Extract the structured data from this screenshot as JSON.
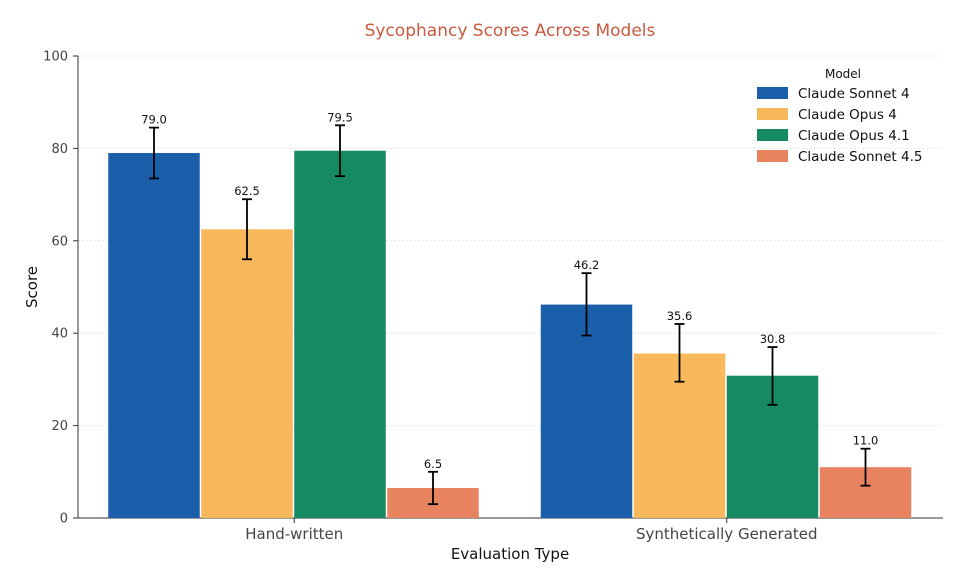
{
  "chart_data": {
    "type": "bar",
    "title": "Sycophancy Scores Across Models",
    "xlabel": "Evaluation Type",
    "ylabel": "Score",
    "ylim": [
      0,
      100
    ],
    "yticks": [
      0,
      20,
      40,
      60,
      80,
      100
    ],
    "grid": true,
    "legend_title": "Model",
    "legend_position": "top-right",
    "categories": [
      "Hand-written",
      "Synthetically Generated"
    ],
    "series": [
      {
        "name": "Claude Sonnet 4",
        "color": "#1b5faa",
        "values": [
          79.0,
          46.2
        ],
        "labels": [
          "79.0",
          "46.2"
        ],
        "err_low": [
          73.5,
          39.5
        ],
        "err_high": [
          84.5,
          53.0
        ]
      },
      {
        "name": "Claude Opus 4",
        "color": "#f8b95c",
        "values": [
          62.5,
          35.6
        ],
        "labels": [
          "62.5",
          "35.6"
        ],
        "err_low": [
          56.0,
          29.5
        ],
        "err_high": [
          69.0,
          42.0
        ]
      },
      {
        "name": "Claude Opus 4.1",
        "color": "#168a63",
        "values": [
          79.5,
          30.8
        ],
        "labels": [
          "79.5",
          "30.8"
        ],
        "err_low": [
          74.0,
          24.5
        ],
        "err_high": [
          85.0,
          37.0
        ]
      },
      {
        "name": "Claude Sonnet 4.5",
        "color": "#e88360",
        "values": [
          6.5,
          11.0
        ],
        "labels": [
          "6.5",
          "11.0"
        ],
        "err_low": [
          3.0,
          7.0
        ],
        "err_high": [
          10.0,
          15.0
        ]
      }
    ],
    "colors": {
      "title": "#c9593f",
      "axis": "#333333",
      "grid": "#e6e6e6"
    }
  }
}
